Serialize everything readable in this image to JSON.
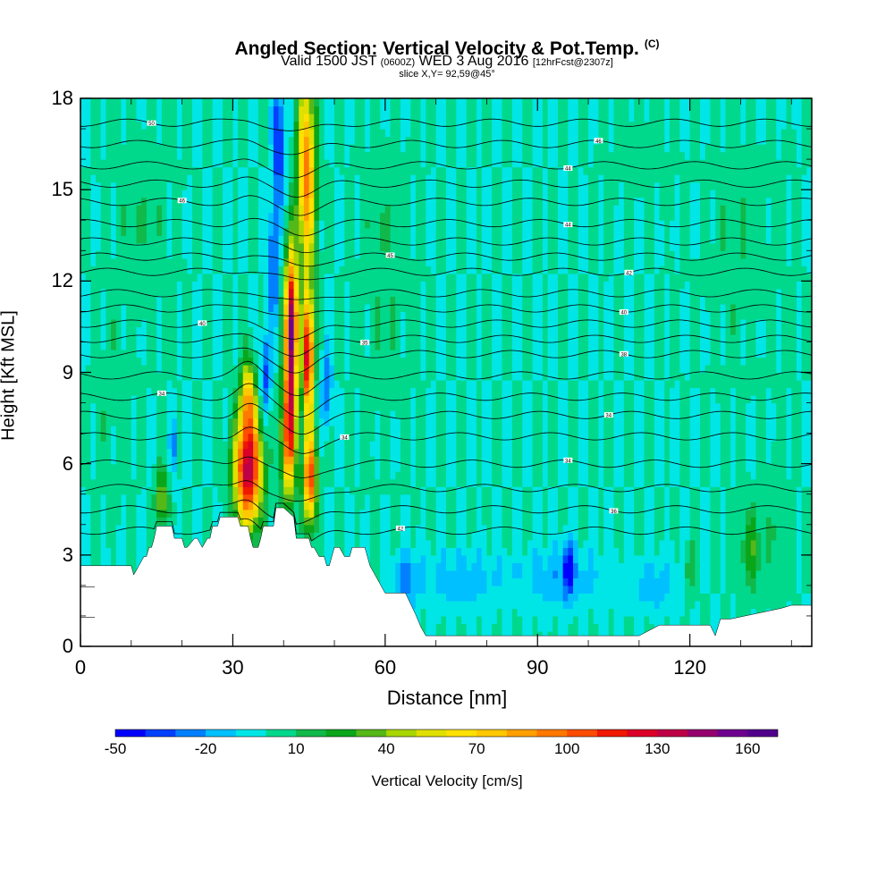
{
  "title": {
    "main": "Angled Section: Vertical Velocity & Pot.Temp.",
    "main_suffix": "(C)",
    "valid": "Valid 1500 JST",
    "zulu": "(0600Z)",
    "date": "WED 3 Aug 2016",
    "forecast": "[12hrFcst@2307z]",
    "slice": "slice X,Y= 92,59@45°"
  },
  "chart_data": {
    "type": "heatmap",
    "subtype": "vertical cross-section (filled contours of vertical velocity, line contours of potential temperature)",
    "xlabel": "Distance [nm]",
    "ylabel": "Height [Kft MSL]",
    "xlim": [
      0,
      144
    ],
    "ylim": [
      0,
      18
    ],
    "x_ticks": [
      "0",
      "30",
      "60",
      "90",
      "120"
    ],
    "x_tick_values": [
      0,
      30,
      60,
      90,
      120
    ],
    "y_ticks": [
      "0",
      "3",
      "6",
      "9",
      "12",
      "15",
      "18"
    ],
    "y_tick_values": [
      0,
      3,
      6,
      9,
      12,
      15,
      18
    ],
    "colorbar": {
      "label": "Vertical Velocity [cm/s]",
      "min": -50,
      "max": 170,
      "step": 10,
      "tick_labels": [
        "-50",
        "-20",
        "10",
        "40",
        "70",
        "100",
        "130",
        "160"
      ],
      "tick_values": [
        -50,
        -20,
        10,
        40,
        70,
        100,
        130,
        160
      ],
      "colors": [
        "#0000ff",
        "#0040ff",
        "#0080ff",
        "#00c0ff",
        "#00e6e6",
        "#00d88c",
        "#11b84a",
        "#0aa61a",
        "#55b818",
        "#a8d600",
        "#e0e000",
        "#ffe000",
        "#ffc800",
        "#ffa000",
        "#ff7800",
        "#ff4c00",
        "#f01800",
        "#dc0028",
        "#be0046",
        "#96006e",
        "#6e0090"
      ]
    },
    "background_w": 0,
    "terrain_profile": {
      "x": [
        0,
        10,
        10.5,
        11.5,
        12.5,
        13,
        13.5,
        14,
        14.5,
        15,
        18,
        18.5,
        20,
        20.5,
        21,
        22.5,
        23,
        24,
        25,
        25.5,
        26,
        27,
        27.5,
        28,
        31,
        31.5,
        33,
        33.5,
        34,
        35,
        35.5,
        36,
        38,
        38.5,
        40,
        42,
        42.5,
        45,
        45.5,
        46,
        47,
        48,
        48.5,
        49,
        50,
        51,
        52,
        53,
        53.5,
        56,
        56.5,
        57,
        58,
        60,
        61,
        62,
        64,
        65,
        66,
        67,
        68,
        69,
        70,
        110,
        114,
        121,
        124,
        125,
        126,
        128,
        138,
        140,
        144
      ],
      "h": [
        2.65,
        2.65,
        2.35,
        2.65,
        2.95,
        2.95,
        3.25,
        3.25,
        3.55,
        3.95,
        3.95,
        3.55,
        3.55,
        3.25,
        3.25,
        3.55,
        3.55,
        3.25,
        3.55,
        3.55,
        3.95,
        3.95,
        4.25,
        4.25,
        4.25,
        3.95,
        3.95,
        3.55,
        3.25,
        3.25,
        3.55,
        3.95,
        3.95,
        4.55,
        4.55,
        4.25,
        3.55,
        3.55,
        3.25,
        3.25,
        2.95,
        2.95,
        2.65,
        2.65,
        3.25,
        3.25,
        2.95,
        2.95,
        3.25,
        3.25,
        2.95,
        2.65,
        2.35,
        1.75,
        1.75,
        1.75,
        1.75,
        1.4,
        1.05,
        0.65,
        0.35,
        0.35,
        0.35,
        0.35,
        0.7,
        0.7,
        0.7,
        0.35,
        0.9,
        0.9,
        1.25,
        1.35,
        1.35
      ]
    },
    "w_features": [
      {
        "x": 33,
        "z": 5.8,
        "sx": 2.6,
        "sz": 1.8,
        "w": 140
      },
      {
        "x": 33,
        "z": 8.2,
        "sx": 1.4,
        "sz": 1.2,
        "w": 70
      },
      {
        "x": 41.5,
        "z": 10.5,
        "sx": 1.2,
        "sz": 2.4,
        "w": 155
      },
      {
        "x": 41,
        "z": 7.0,
        "sx": 1.4,
        "sz": 2.0,
        "w": 110
      },
      {
        "x": 44.5,
        "z": 15.5,
        "sx": 1.8,
        "sz": 3.2,
        "w": 95
      },
      {
        "x": 44.8,
        "z": 9.5,
        "sx": 1.1,
        "sz": 2.0,
        "w": 130
      },
      {
        "x": 45.2,
        "z": 5.5,
        "sx": 1.3,
        "sz": 1.4,
        "w": 110
      },
      {
        "x": 16,
        "z": 4.9,
        "sx": 1.2,
        "sz": 0.9,
        "w": 45
      },
      {
        "x": 39,
        "z": 16.5,
        "sx": 1.1,
        "sz": 2.2,
        "w": -45
      },
      {
        "x": 38,
        "z": 12.5,
        "sx": 0.9,
        "sz": 1.8,
        "w": -40
      },
      {
        "x": 36.5,
        "z": 9.0,
        "sx": 1.0,
        "sz": 1.4,
        "w": -35
      },
      {
        "x": 48.5,
        "z": 8.5,
        "sx": 1.0,
        "sz": 1.3,
        "w": -30
      },
      {
        "x": 18.5,
        "z": 6.6,
        "sx": 0.8,
        "sz": 0.9,
        "w": -25
      },
      {
        "x": 75,
        "z": 2.2,
        "sx": 9.0,
        "sz": 1.0,
        "w": -15
      },
      {
        "x": 95,
        "z": 2.3,
        "sx": 8.0,
        "sz": 1.0,
        "w": -18
      },
      {
        "x": 113,
        "z": 2.0,
        "sx": 5.5,
        "sz": 0.9,
        "w": -14
      },
      {
        "x": 96,
        "z": 2.6,
        "sx": 0.9,
        "sz": 0.9,
        "w": -40
      },
      {
        "x": 64,
        "z": 2.2,
        "sx": 2.5,
        "sz": 0.9,
        "w": -22
      },
      {
        "x": 132,
        "z": 3.2,
        "sx": 2.0,
        "sz": 1.3,
        "w": 28
      },
      {
        "x": 120,
        "z": 2.5,
        "sx": 1.2,
        "sz": 1.0,
        "w": 20
      },
      {
        "x": 137,
        "z": 4.0,
        "sx": 2.5,
        "sz": 2.5,
        "w": 8
      },
      {
        "x": 60,
        "z": 12.0,
        "sx": 5.0,
        "sz": 5.0,
        "w": 8
      },
      {
        "x": 130,
        "z": 13.0,
        "sx": 8.0,
        "sz": 4.0,
        "w": 7
      },
      {
        "x": 12,
        "z": 14.0,
        "sx": 6.0,
        "sz": 4.0,
        "w": 7
      },
      {
        "x": 6,
        "z": 8.0,
        "sx": 4.0,
        "sz": 3.0,
        "w": 6
      },
      {
        "x": 110,
        "z": 16.5,
        "sx": 6.0,
        "sz": 2.0,
        "w": 6
      }
    ],
    "theta_contours": [
      {
        "base": 3.8,
        "label": "42",
        "lx": 63
      },
      {
        "base": 4.5,
        "label": "36",
        "lx": 105
      },
      {
        "base": 5.2,
        "label": "",
        "lx": 0
      },
      {
        "base": 6.0,
        "label": "34",
        "lx": 96
      },
      {
        "base": 6.9,
        "label": "34",
        "lx": 52
      },
      {
        "base": 7.6,
        "label": "34",
        "lx": 104
      },
      {
        "base": 8.2,
        "label": "34",
        "lx": 16
      },
      {
        "base": 8.9,
        "label": "",
        "lx": 0
      },
      {
        "base": 9.6,
        "label": "38",
        "lx": 107
      },
      {
        "base": 10.1,
        "label": "35",
        "lx": 56
      },
      {
        "base": 10.6,
        "label": "40",
        "lx": 24
      },
      {
        "base": 11.1,
        "label": "40",
        "lx": 107
      },
      {
        "base": 11.6,
        "label": "",
        "lx": 0
      },
      {
        "base": 12.3,
        "label": "42",
        "lx": 108
      },
      {
        "base": 12.8,
        "label": "45",
        "lx": 61
      },
      {
        "base": 13.3,
        "label": "",
        "lx": 0
      },
      {
        "base": 13.9,
        "label": "44",
        "lx": 96
      },
      {
        "base": 14.6,
        "label": "46",
        "lx": 20
      },
      {
        "base": 15.2,
        "label": "",
        "lx": 0
      },
      {
        "base": 15.8,
        "label": "44",
        "lx": 96
      },
      {
        "base": 16.5,
        "label": "46",
        "lx": 102
      },
      {
        "base": 17.2,
        "label": "50",
        "lx": 14
      }
    ]
  }
}
